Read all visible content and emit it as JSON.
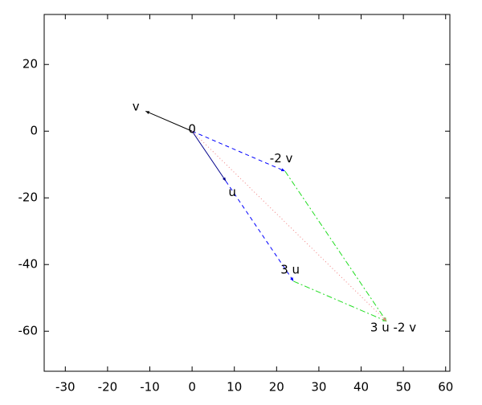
{
  "chart_data": {
    "type": "vector",
    "xlim": [
      -35,
      61
    ],
    "ylim": [
      -72,
      35
    ],
    "xticks": [
      -30,
      -20,
      -10,
      0,
      10,
      20,
      30,
      40,
      50,
      60
    ],
    "yticks": [
      -60,
      -40,
      -20,
      0,
      20
    ],
    "vectors": [
      {
        "from": [
          0,
          0
        ],
        "to": [
          8,
          -15
        ],
        "color": "#00008b",
        "dash": "solid"
      },
      {
        "from": [
          0,
          0
        ],
        "to": [
          -11,
          6
        ],
        "color": "#000000",
        "dash": "solid"
      },
      {
        "from": [
          0,
          0
        ],
        "to": [
          22,
          -12
        ],
        "color": "#0000ff",
        "dash": "dashed"
      },
      {
        "from": [
          8,
          -15
        ],
        "to": [
          24,
          -45
        ],
        "color": "#0000ff",
        "dash": "dashed"
      },
      {
        "from": [
          22,
          -12
        ],
        "to": [
          46,
          -57
        ],
        "color": "#22dd22",
        "dash": "dashdot"
      },
      {
        "from": [
          24,
          -45
        ],
        "to": [
          46,
          -57
        ],
        "color": "#22dd22",
        "dash": "dashdot"
      },
      {
        "from": [
          0,
          0
        ],
        "to": [
          46,
          -57
        ],
        "color": "#f08080",
        "dash": "dotted"
      }
    ],
    "labels": [
      {
        "text": "v",
        "x": -13.3,
        "y": 7.3
      },
      {
        "text": "0",
        "x": 0,
        "y": 0.5
      },
      {
        "text": "u",
        "x": 9.5,
        "y": -18.4
      },
      {
        "text": "-2 v",
        "x": 21.1,
        "y": -8.2
      },
      {
        "text": "3 u",
        "x": 23.2,
        "y": -41.6
      },
      {
        "text": "3 u -2 v",
        "x": 47.6,
        "y": -59
      }
    ]
  }
}
